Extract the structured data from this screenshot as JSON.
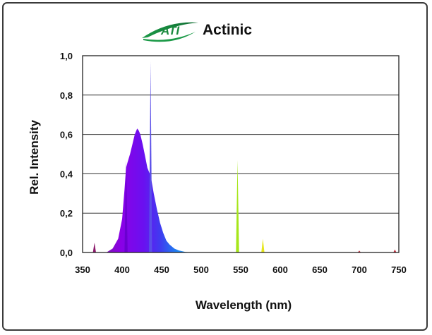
{
  "chart_data": {
    "type": "area",
    "title": "Actinic",
    "logo_text": "ATI",
    "xlabel": "Wavelength (nm)",
    "ylabel": "Rel. Intensity",
    "xlim": [
      350,
      750
    ],
    "ylim": [
      0,
      1.0
    ],
    "x_ticks": [
      "350",
      "400",
      "450",
      "500",
      "550",
      "600",
      "650",
      "700",
      "750"
    ],
    "y_ticks": [
      "0,0",
      "0,2",
      "0,4",
      "0,6",
      "0,8",
      "1,0"
    ],
    "grid": "horizontal",
    "series": [
      {
        "x": [
          368,
          380,
          388,
          395,
          400,
          403,
          405,
          407,
          410,
          413,
          416,
          419,
          421,
          423,
          426,
          429,
          432,
          435,
          437,
          440,
          444,
          448,
          452,
          456,
          460,
          466,
          472,
          480,
          490
        ],
        "values": [
          0.0,
          0.0,
          0.02,
          0.07,
          0.17,
          0.32,
          0.43,
          0.46,
          0.5,
          0.55,
          0.6,
          0.63,
          0.62,
          0.6,
          0.55,
          0.49,
          0.43,
          0.4,
          0.37,
          0.3,
          0.22,
          0.15,
          0.1,
          0.06,
          0.04,
          0.02,
          0.01,
          0.003,
          0.0
        ]
      }
    ],
    "emission_lines": [
      {
        "x": 365,
        "value": 0.05,
        "color": "#8b1a6b"
      },
      {
        "x": 405,
        "value": 0.47,
        "color": "#6a00d0"
      },
      {
        "x": 436,
        "value": 0.97,
        "color": "#5a4ee8"
      },
      {
        "x": 546,
        "value": 0.47,
        "color": "#a6e61a"
      },
      {
        "x": 578,
        "value": 0.07,
        "color": "#e6e61a"
      },
      {
        "x": 700,
        "value": 0.01,
        "color": "#c03040"
      },
      {
        "x": 745,
        "value": 0.015,
        "color": "#c03040"
      }
    ]
  }
}
